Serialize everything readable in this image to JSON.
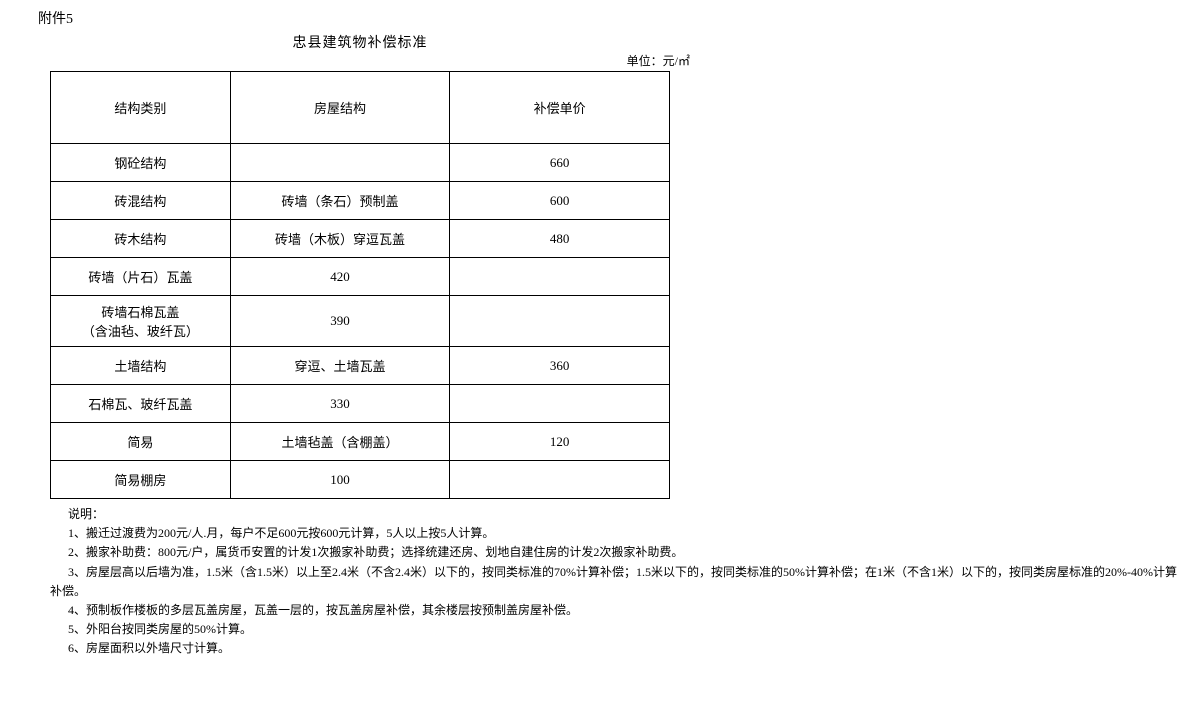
{
  "attachment": "附件5",
  "title": "忠县建筑物补偿标准",
  "unit": "单位：元/㎡",
  "headers": {
    "col1": "结构类别",
    "col2": "房屋结构",
    "col3": "补偿单价"
  },
  "rows": [
    {
      "c1": "钢砼结构",
      "c2": "",
      "c3": "660"
    },
    {
      "c1": "砖混结构",
      "c2": "砖墙（条石）预制盖",
      "c3": "600"
    },
    {
      "c1": "砖木结构",
      "c2": "砖墙（木板）穿逗瓦盖",
      "c3": "480"
    },
    {
      "c1": "砖墙（片石）瓦盖",
      "c2": "420",
      "c3": ""
    },
    {
      "c1": "砖墙石棉瓦盖\n（含油毡、玻纤瓦）",
      "c2": "390",
      "c3": ""
    },
    {
      "c1": "土墙结构",
      "c2": "穿逗、土墙瓦盖",
      "c3": "360"
    },
    {
      "c1": "石棉瓦、玻纤瓦盖",
      "c2": "330",
      "c3": ""
    },
    {
      "c1": "简易",
      "c2": "土墙毡盖（含棚盖）",
      "c3": "120"
    },
    {
      "c1": "简易棚房",
      "c2": "100",
      "c3": ""
    }
  ],
  "notes_title": "说明：",
  "notes": [
    "1、搬迁过渡费为200元/人.月，每户不足600元按600元计算，5人以上按5人计算。",
    "2、搬家补助费：800元/户，属货币安置的计发1次搬家补助费；选择统建还房、划地自建住房的计发2次搬家补助费。",
    "3、房屋层高以后墙为准，1.5米（含1.5米）以上至2.4米（不含2.4米）以下的，按同类标准的70%计算补偿；1.5米以下的，按同类标准的50%计算补偿；在1米（不含1米）以下的，按同类房屋标准的20%-40%计算补偿。",
    "4、预制板作楼板的多层瓦盖房屋，瓦盖一层的，按瓦盖房屋补偿，其余楼层按预制盖房屋补偿。",
    "5、外阳台按同类房屋的50%计算。",
    "6、房屋面积以外墙尺寸计算。"
  ]
}
